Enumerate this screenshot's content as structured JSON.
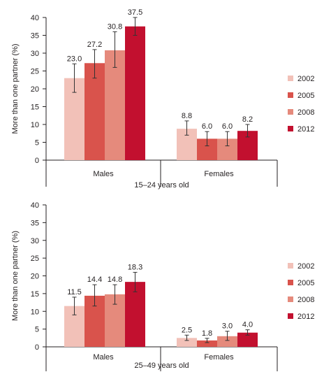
{
  "chart_data": [
    {
      "type": "bar",
      "categories": [
        "Males",
        "Females"
      ],
      "xlabel": "15–24 years old",
      "ylabel": "More than one partner (%)",
      "ylim": [
        0,
        40
      ],
      "yticks": [
        "0",
        "5",
        "10",
        "15",
        "20",
        "25",
        "30",
        "35",
        "40"
      ],
      "series": [
        {
          "name": "2002",
          "color": "#f2c1b8",
          "values": [
            23.0,
            8.8
          ],
          "labels": [
            "23.0",
            "8.8"
          ],
          "err": [
            [
              19.0,
              27.0
            ],
            [
              7.0,
              11.0
            ]
          ]
        },
        {
          "name": "2005",
          "color": "#d9534c",
          "values": [
            27.2,
            6.0
          ],
          "labels": [
            "27.2",
            "6.0"
          ],
          "err": [
            [
              23.0,
              31.0
            ],
            [
              4.0,
              8.0
            ]
          ]
        },
        {
          "name": "2008",
          "color": "#e58a7c",
          "values": [
            30.8,
            6.0
          ],
          "labels": [
            "30.8",
            "6.0"
          ],
          "err": [
            [
              26.0,
              36.0
            ],
            [
              4.0,
              8.0
            ]
          ]
        },
        {
          "name": "2012",
          "color": "#c2102f",
          "values": [
            37.5,
            8.2
          ],
          "labels": [
            "37.5",
            "8.2"
          ],
          "err": [
            [
              35.0,
              40.0
            ],
            [
              6.5,
              10.0
            ]
          ]
        }
      ],
      "legend": "right"
    },
    {
      "type": "bar",
      "categories": [
        "Males",
        "Females"
      ],
      "xlabel": "25–49 years old",
      "ylabel": "More than one partner (%)",
      "ylim": [
        0,
        40
      ],
      "yticks": [
        "0",
        "5",
        "10",
        "15",
        "20",
        "25",
        "30",
        "35",
        "40"
      ],
      "series": [
        {
          "name": "2002",
          "color": "#f2c1b8",
          "values": [
            11.5,
            2.5
          ],
          "labels": [
            "11.5",
            "2.5"
          ],
          "err": [
            [
              9.0,
              14.0
            ],
            [
              1.8,
              3.3
            ]
          ]
        },
        {
          "name": "2005",
          "color": "#d9534c",
          "values": [
            14.4,
            1.8
          ],
          "labels": [
            "14.4",
            "1.8"
          ],
          "err": [
            [
              11.5,
              17.5
            ],
            [
              1.2,
              2.4
            ]
          ]
        },
        {
          "name": "2008",
          "color": "#e58a7c",
          "values": [
            14.8,
            3.0
          ],
          "labels": [
            "14.8",
            "3.0"
          ],
          "err": [
            [
              12.0,
              17.5
            ],
            [
              1.8,
              4.4
            ]
          ]
        },
        {
          "name": "2012",
          "color": "#c2102f",
          "values": [
            18.3,
            4.0
          ],
          "labels": [
            "18.3",
            "4.0"
          ],
          "err": [
            [
              15.5,
              21.0
            ],
            [
              3.3,
              4.8
            ]
          ]
        }
      ],
      "legend": "right"
    }
  ]
}
